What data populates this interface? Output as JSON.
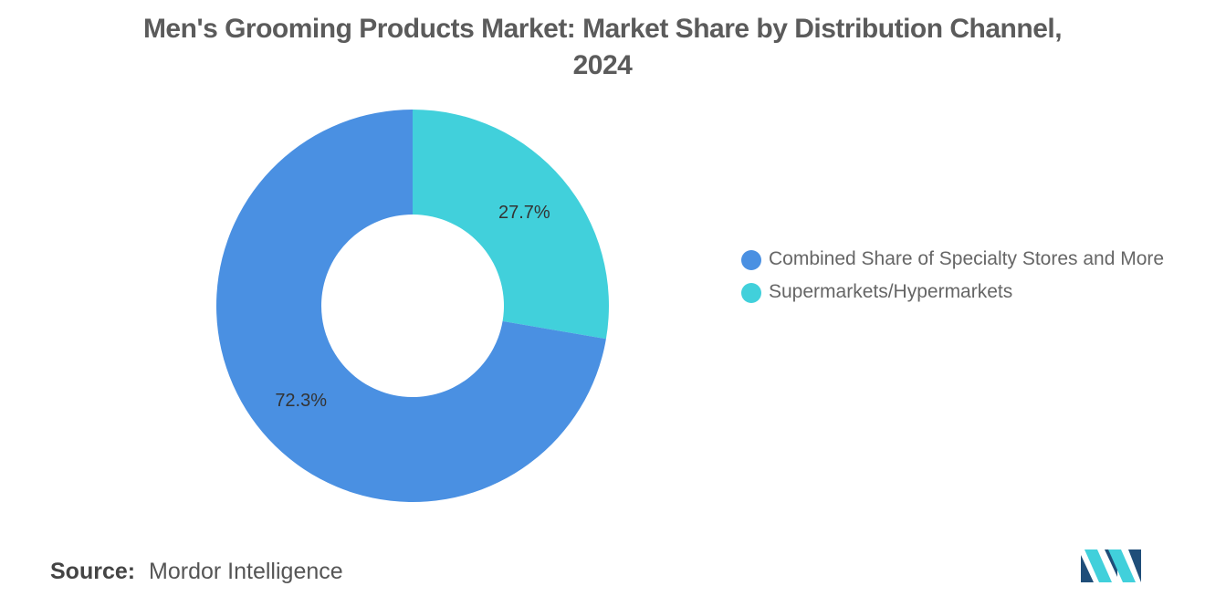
{
  "title_line1": "Men's Grooming Products Market: Market Share by Distribution Channel,",
  "title_line2": "2024",
  "chart_data": {
    "type": "pie",
    "style": "donut",
    "title": "Men's Grooming Products Market: Market Share by Distribution Channel, 2024",
    "slices": [
      {
        "label": "Supermarkets/Hypermarkets",
        "value": 27.7,
        "display": "27.7%",
        "color": "#41d0db"
      },
      {
        "label": "Combined Share of Specialty Stores and More",
        "value": 72.3,
        "display": "72.3%",
        "color": "#4a90e2"
      }
    ],
    "legend_position": "right"
  },
  "legend": [
    {
      "label": "Combined Share of Specialty Stores and More",
      "color": "#4a90e2"
    },
    {
      "label": "Supermarkets/Hypermarkets",
      "color": "#41d0db"
    }
  ],
  "source": {
    "label": "Source:",
    "value": "Mordor Intelligence"
  },
  "logo": {
    "icon": "mordor-intelligence-logo-icon",
    "colors": [
      "#1f4e79",
      "#41d0db"
    ]
  }
}
